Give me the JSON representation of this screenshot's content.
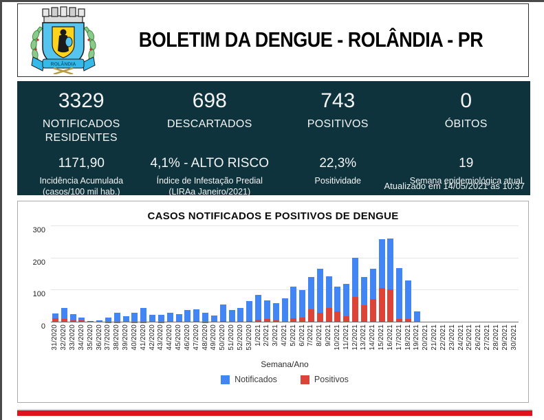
{
  "header": {
    "title": "BOLETIM DA DENGUE - ROLÂNDIA - PR"
  },
  "stats": {
    "primary": [
      {
        "value": "3329",
        "label": "NOTIFICADOS RESIDENTES"
      },
      {
        "value": "698",
        "label": "DESCARTADOS"
      },
      {
        "value": "743",
        "label": "POSITIVOS"
      },
      {
        "value": "0",
        "label": "ÓBITOS"
      }
    ],
    "secondary": [
      {
        "value": "1171,90",
        "lines": [
          "Incidência Acumulada",
          "(casos/100 mil hab.)"
        ]
      },
      {
        "value": "4,1% - ALTO RISCO",
        "lines": [
          "Índice de Infestação Predial",
          "(LIRAa Janeiro/2021)"
        ]
      },
      {
        "value": "22,3%",
        "lines": [
          "Positividade",
          ""
        ]
      },
      {
        "value": "19",
        "lines": [
          "Semana epidemiológica atual",
          ""
        ]
      }
    ],
    "updated": "Atualizado em 14/05/2021 às 10:37"
  },
  "chart_data": {
    "type": "bar",
    "bar_style": "overlapped",
    "title": "CASOS NOTIFICADOS E POSITIVOS DE DENGUE",
    "xlabel": "Semana/Ano",
    "ylabel": "",
    "ylim": [
      0,
      300
    ],
    "yticks": [
      0,
      100,
      200,
      300
    ],
    "grid": true,
    "legend_position": "bottom",
    "categories": [
      "31/2020",
      "32/2020",
      "33/2020",
      "34/2020",
      "35/2020",
      "36/2020",
      "37/2020",
      "38/2020",
      "39/2020",
      "40/2020",
      "41/2020",
      "42/2020",
      "43/2020",
      "44/2020",
      "45/2020",
      "46/2020",
      "47/2020",
      "48/2020",
      "49/2020",
      "50/2020",
      "51/2020",
      "52/2020",
      "53/2020",
      "1/2021",
      "2/2021",
      "3/2021",
      "4/2021",
      "5/2021",
      "6/2021",
      "7/2021",
      "8/2021",
      "9/2021",
      "10/2021",
      "11/2021",
      "12/2021",
      "13/2021",
      "14/2021",
      "15/2021",
      "16/2021",
      "17/2021",
      "18/2021",
      "19/2021",
      "20/2021",
      "21/2021",
      "22/2021",
      "23/2021",
      "24/2021",
      "25/2021",
      "26/2021",
      "27/2021",
      "28/2021",
      "29/2021",
      "30/2021"
    ],
    "series": [
      {
        "name": "Notificados",
        "color": "#4285F4",
        "values": [
          27,
          44,
          26,
          16,
          5,
          7,
          14,
          29,
          19,
          30,
          44,
          24,
          24,
          31,
          26,
          39,
          41,
          31,
          21,
          55,
          39,
          44,
          67,
          86,
          69,
          60,
          74,
          112,
          100,
          141,
          167,
          143,
          112,
          119,
          201,
          142,
          167,
          260,
          262,
          169,
          131,
          34,
          0,
          0,
          0,
          0,
          0,
          0,
          0,
          0,
          0,
          0,
          0
        ]
      },
      {
        "name": "Positivos",
        "color": "#DC4437",
        "values": [
          13,
          11,
          7,
          7,
          4,
          0,
          1,
          1,
          0,
          1,
          1,
          3,
          1,
          3,
          3,
          3,
          5,
          1,
          0,
          5,
          3,
          3,
          4,
          9,
          10,
          7,
          3,
          12,
          14,
          41,
          29,
          46,
          34,
          19,
          79,
          53,
          73,
          107,
          103,
          10,
          10,
          0,
          0,
          0,
          0,
          0,
          0,
          0,
          0,
          0,
          0,
          0,
          0
        ]
      }
    ]
  },
  "colors": {
    "band_background": "#0f333d",
    "footer_stripe": "#e1121c",
    "notificados_blue": "#4285F4",
    "positivos_red": "#DC4437"
  }
}
